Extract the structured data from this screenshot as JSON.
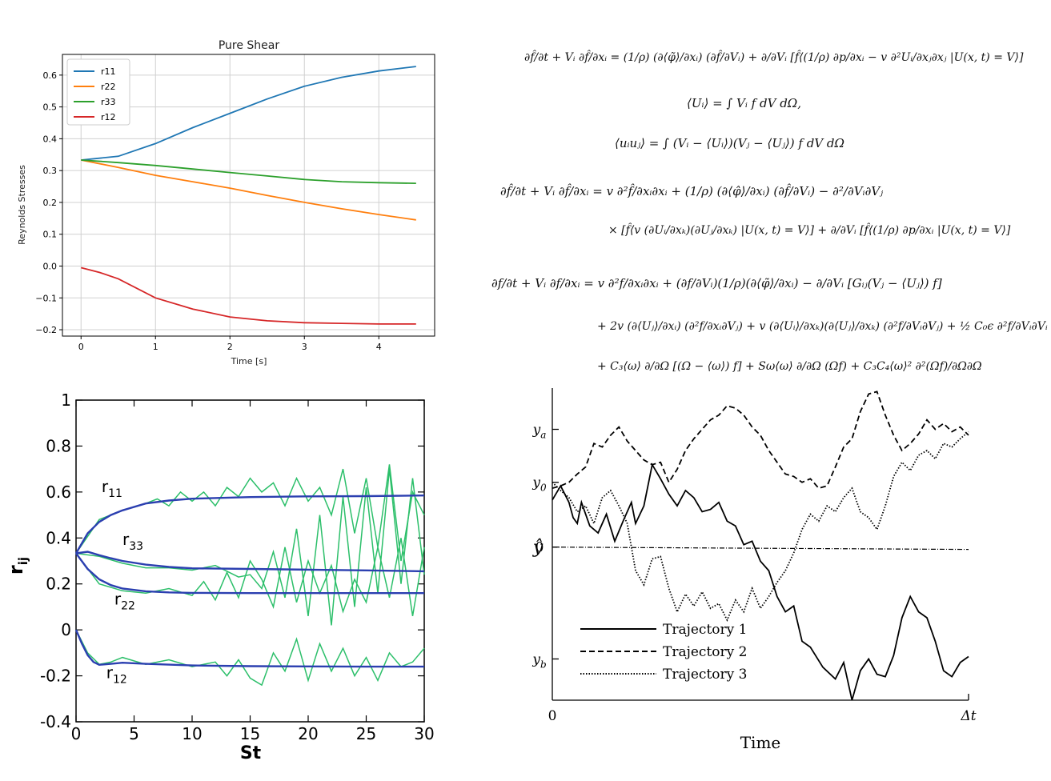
{
  "charts": [
    {
      "id": "pure-shear",
      "type": "line",
      "title": "Pure Shear",
      "xlabel": "Time [s]",
      "ylabel": "Reynolds Stresses",
      "xlim": [
        -0.25,
        4.75
      ],
      "ylim": [
        -0.22,
        0.665
      ],
      "xticks": [
        0,
        1,
        2,
        3,
        4
      ],
      "yticks": [
        -0.2,
        -0.1,
        0.0,
        0.1,
        0.2,
        0.3,
        0.4,
        0.5,
        0.6
      ],
      "ytick_labels": [
        "−0.2",
        "−0.1",
        "0.0",
        "0.1",
        "0.2",
        "0.3",
        "0.4",
        "0.5",
        "0.6"
      ],
      "grid": true,
      "legend": "top-left",
      "series": [
        {
          "name": "r11",
          "color": "#1f77b4",
          "x": [
            0,
            0.5,
            1,
            1.5,
            2,
            2.5,
            3,
            3.5,
            4,
            4.5
          ],
          "y": [
            0.333,
            0.345,
            0.385,
            0.435,
            0.48,
            0.525,
            0.565,
            0.593,
            0.613,
            0.627
          ]
        },
        {
          "name": "r22",
          "color": "#ff7f0e",
          "x": [
            0,
            0.5,
            1,
            1.5,
            2,
            2.5,
            3,
            3.5,
            4,
            4.5
          ],
          "y": [
            0.333,
            0.31,
            0.285,
            0.265,
            0.245,
            0.222,
            0.2,
            0.18,
            0.162,
            0.145
          ]
        },
        {
          "name": "r33",
          "color": "#2ca02c",
          "x": [
            0,
            0.5,
            1,
            1.5,
            2,
            2.5,
            3,
            3.5,
            4,
            4.5
          ],
          "y": [
            0.333,
            0.325,
            0.316,
            0.305,
            0.294,
            0.283,
            0.272,
            0.265,
            0.262,
            0.26
          ]
        },
        {
          "name": "r12",
          "color": "#d62728",
          "x": [
            0,
            0.25,
            0.5,
            1,
            1.5,
            2,
            2.5,
            3,
            3.5,
            4,
            4.5
          ],
          "y": [
            -0.005,
            -0.02,
            -0.04,
            -0.1,
            -0.135,
            -0.16,
            -0.172,
            -0.178,
            -0.18,
            -0.182,
            -0.182
          ]
        }
      ]
    },
    {
      "id": "rij-vs-st",
      "type": "line",
      "xlabel": "St",
      "ylabel": "r",
      "ylabel_sub": "ij",
      "xlim": [
        0,
        30
      ],
      "ylim": [
        -0.4,
        1.0
      ],
      "xticks": [
        0,
        5,
        10,
        15,
        20,
        25,
        30
      ],
      "yticks": [
        -0.4,
        -0.2,
        0,
        0.2,
        0.4,
        0.6,
        0.8,
        1
      ],
      "ytick_labels": [
        "-0.4",
        "-0.2",
        "0",
        "0.2",
        "0.4",
        "0.6",
        "0.8",
        "1"
      ],
      "grid": false,
      "annotations": [
        {
          "main": "r",
          "sub": "11",
          "x": 3.1,
          "y": 0.6
        },
        {
          "main": "r",
          "sub": "33",
          "x": 4.9,
          "y": 0.37
        },
        {
          "main": "r",
          "sub": "22",
          "x": 4.2,
          "y": 0.11
        },
        {
          "main": "r",
          "sub": "12",
          "x": 3.5,
          "y": -0.21
        }
      ],
      "smooth_color": "#2b3fb0",
      "noisy_color": "#2cbf6a",
      "smooth_series": [
        {
          "x": [
            0,
            1,
            2,
            3,
            4,
            6,
            8,
            10,
            15,
            20,
            25,
            30
          ],
          "y": [
            0.333,
            0.42,
            0.47,
            0.5,
            0.52,
            0.55,
            0.563,
            0.571,
            0.578,
            0.581,
            0.582,
            0.585
          ]
        },
        {
          "x": [
            0,
            1,
            2,
            3,
            4,
            6,
            8,
            10,
            15,
            20,
            25,
            30
          ],
          "y": [
            0.333,
            0.34,
            0.325,
            0.312,
            0.3,
            0.284,
            0.274,
            0.268,
            0.265,
            0.262,
            0.259,
            0.255
          ]
        },
        {
          "x": [
            0,
            1,
            2,
            3,
            4,
            6,
            8,
            10,
            15,
            20,
            25,
            30
          ],
          "y": [
            0.333,
            0.265,
            0.22,
            0.195,
            0.18,
            0.168,
            0.163,
            0.161,
            0.16,
            0.16,
            0.16,
            0.16
          ]
        },
        {
          "x": [
            0,
            0.5,
            1,
            1.5,
            2,
            3,
            4,
            6,
            10,
            15,
            20,
            25,
            30
          ],
          "y": [
            0,
            -0.06,
            -0.11,
            -0.14,
            -0.152,
            -0.148,
            -0.143,
            -0.148,
            -0.155,
            -0.158,
            -0.159,
            -0.16,
            -0.16
          ]
        }
      ],
      "noisy_series": [
        {
          "x": [
            0,
            2,
            4,
            6,
            7,
            8,
            9,
            10,
            11,
            12,
            13,
            14,
            15,
            16,
            17,
            18,
            19,
            20,
            21,
            22,
            23,
            24,
            25,
            26,
            27,
            28,
            29,
            30
          ],
          "y": [
            0.333,
            0.48,
            0.52,
            0.55,
            0.57,
            0.54,
            0.6,
            0.56,
            0.6,
            0.54,
            0.62,
            0.58,
            0.66,
            0.6,
            0.64,
            0.54,
            0.66,
            0.56,
            0.62,
            0.5,
            0.7,
            0.42,
            0.66,
            0.36,
            0.72,
            0.3,
            0.6,
            0.5
          ]
        },
        {
          "x": [
            0,
            2,
            4,
            6,
            8,
            10,
            12,
            14,
            15,
            16,
            17,
            18,
            19,
            20,
            21,
            22,
            23,
            24,
            25,
            26,
            27,
            28,
            29,
            30
          ],
          "y": [
            0.333,
            0.32,
            0.29,
            0.27,
            0.27,
            0.26,
            0.28,
            0.23,
            0.24,
            0.18,
            0.34,
            0.14,
            0.44,
            0.06,
            0.5,
            0.02,
            0.58,
            0.1,
            0.62,
            0.16,
            0.7,
            0.2,
            0.66,
            0.24
          ]
        },
        {
          "x": [
            0,
            2,
            4,
            6,
            8,
            10,
            11,
            12,
            13,
            14,
            15,
            16,
            17,
            18,
            19,
            20,
            21,
            22,
            23,
            24,
            25,
            26,
            27,
            28,
            29,
            30
          ],
          "y": [
            0.333,
            0.2,
            0.17,
            0.16,
            0.18,
            0.15,
            0.21,
            0.13,
            0.25,
            0.14,
            0.3,
            0.22,
            0.1,
            0.36,
            0.12,
            0.3,
            0.16,
            0.28,
            0.08,
            0.22,
            0.12,
            0.36,
            0.14,
            0.4,
            0.06,
            0.36
          ]
        },
        {
          "x": [
            0,
            1,
            2,
            3,
            4,
            6,
            8,
            10,
            12,
            13,
            14,
            15,
            16,
            17,
            18,
            19,
            20,
            21,
            22,
            23,
            24,
            25,
            26,
            27,
            28,
            29,
            30
          ],
          "y": [
            0,
            -0.1,
            -0.15,
            -0.14,
            -0.12,
            -0.15,
            -0.13,
            -0.16,
            -0.14,
            -0.2,
            -0.13,
            -0.21,
            -0.24,
            -0.1,
            -0.18,
            -0.04,
            -0.22,
            -0.06,
            -0.18,
            -0.08,
            -0.2,
            -0.12,
            -0.22,
            -0.1,
            -0.16,
            -0.14,
            -0.08
          ]
        }
      ]
    },
    {
      "id": "trajectories",
      "type": "line",
      "xlabel": "Time",
      "ylabel": "ŷ",
      "xtick_labels": [
        "0",
        "Δt"
      ],
      "ytick_labels": [
        "y",
        "y",
        "0",
        "y"
      ],
      "ytick_subs": [
        "a",
        "0",
        "",
        "b"
      ],
      "xlim": [
        0,
        1
      ],
      "ylim": [
        -1.3,
        1.35
      ],
      "ytick_values": [
        1.0,
        0.55,
        0.0,
        -0.95
      ],
      "legend": "bottom-left",
      "series": [
        {
          "name": "Trajectory 1",
          "style": "solid",
          "x": [
            0,
            0.02,
            0.04,
            0.05,
            0.06,
            0.07,
            0.09,
            0.11,
            0.13,
            0.15,
            0.17,
            0.19,
            0.2,
            0.22,
            0.24,
            0.26,
            0.28,
            0.3,
            0.32,
            0.34,
            0.36,
            0.38,
            0.4,
            0.42,
            0.44,
            0.46,
            0.48,
            0.5,
            0.52,
            0.54,
            0.56,
            0.58,
            0.6,
            0.62,
            0.65,
            0.68,
            0.7,
            0.72,
            0.74,
            0.76,
            0.78,
            0.8,
            0.82,
            0.84,
            0.86,
            0.88,
            0.9,
            0.92,
            0.94,
            0.96,
            0.98,
            1.0
          ],
          "y": [
            0.4,
            0.52,
            0.38,
            0.25,
            0.2,
            0.38,
            0.18,
            0.12,
            0.28,
            0.05,
            0.22,
            0.38,
            0.2,
            0.35,
            0.7,
            0.58,
            0.45,
            0.35,
            0.48,
            0.42,
            0.3,
            0.32,
            0.38,
            0.22,
            0.18,
            0.02,
            0.05,
            -0.12,
            -0.2,
            -0.42,
            -0.55,
            -0.5,
            -0.8,
            -0.85,
            -1.02,
            -1.12,
            -0.98,
            -1.3,
            -1.05,
            -0.95,
            -1.08,
            -1.1,
            -0.92,
            -0.6,
            -0.42,
            -0.55,
            -0.6,
            -0.8,
            -1.05,
            -1.1,
            -0.98,
            -0.93
          ]
        },
        {
          "name": "Trajectory 2",
          "style": "dashed",
          "x": [
            0,
            0.02,
            0.04,
            0.06,
            0.08,
            0.1,
            0.12,
            0.14,
            0.16,
            0.18,
            0.2,
            0.22,
            0.24,
            0.26,
            0.28,
            0.3,
            0.32,
            0.34,
            0.36,
            0.38,
            0.4,
            0.42,
            0.44,
            0.46,
            0.48,
            0.5,
            0.52,
            0.54,
            0.56,
            0.58,
            0.6,
            0.62,
            0.64,
            0.66,
            0.68,
            0.7,
            0.72,
            0.74,
            0.76,
            0.78,
            0.8,
            0.82,
            0.84,
            0.86,
            0.88,
            0.9,
            0.92,
            0.94,
            0.96,
            0.98,
            1.0
          ],
          "y": [
            0.5,
            0.52,
            0.55,
            0.62,
            0.68,
            0.88,
            0.85,
            0.95,
            1.02,
            0.9,
            0.82,
            0.74,
            0.7,
            0.72,
            0.55,
            0.66,
            0.82,
            0.92,
            1.0,
            1.08,
            1.12,
            1.2,
            1.18,
            1.12,
            1.02,
            0.95,
            0.82,
            0.72,
            0.62,
            0.6,
            0.55,
            0.58,
            0.5,
            0.52,
            0.68,
            0.85,
            0.92,
            1.15,
            1.3,
            1.32,
            1.12,
            0.95,
            0.82,
            0.88,
            0.96,
            1.08,
            1.0,
            1.05,
            0.98,
            1.02,
            0.95
          ]
        },
        {
          "name": "Trajectory 3",
          "style": "dotted",
          "x": [
            0,
            0.02,
            0.04,
            0.06,
            0.08,
            0.1,
            0.12,
            0.14,
            0.16,
            0.18,
            0.2,
            0.22,
            0.24,
            0.26,
            0.28,
            0.3,
            0.32,
            0.34,
            0.36,
            0.38,
            0.4,
            0.42,
            0.44,
            0.46,
            0.48,
            0.5,
            0.52,
            0.54,
            0.56,
            0.58,
            0.6,
            0.62,
            0.64,
            0.66,
            0.68,
            0.7,
            0.72,
            0.74,
            0.76,
            0.78,
            0.8,
            0.82,
            0.84,
            0.86,
            0.88,
            0.9,
            0.92,
            0.94,
            0.96,
            0.98,
            1.0
          ],
          "y": [
            0.55,
            0.48,
            0.42,
            0.3,
            0.35,
            0.2,
            0.42,
            0.48,
            0.35,
            0.2,
            -0.2,
            -0.32,
            -0.1,
            -0.08,
            -0.35,
            -0.55,
            -0.4,
            -0.5,
            -0.38,
            -0.52,
            -0.48,
            -0.62,
            -0.45,
            -0.55,
            -0.35,
            -0.52,
            -0.42,
            -0.3,
            -0.2,
            -0.05,
            0.15,
            0.28,
            0.22,
            0.35,
            0.3,
            0.42,
            0.5,
            0.3,
            0.25,
            0.15,
            0.35,
            0.6,
            0.72,
            0.65,
            0.78,
            0.82,
            0.75,
            0.88,
            0.85,
            0.92,
            0.98
          ]
        },
        {
          "name": "",
          "style": "dashdot",
          "x": [
            0,
            1.0
          ],
          "y": [
            0,
            -0.02
          ]
        }
      ]
    }
  ],
  "equations": [
    {
      "text": "∂f̂/∂t + Vᵢ ∂f̂/∂xᵢ = (1/ρ) (∂⟨φ̃⟩/∂xᵢ) (∂f̂/∂Vᵢ) + ∂/∂Vᵢ [f̂⟨(1/ρ) ∂p/∂xᵢ − v ∂²Uᵢ/∂xⱼ∂xⱼ |U(x, t) = V⟩]"
    },
    {
      "text": "⟨Uᵢ⟩ = ∫ Vᵢ f dV dΩ,"
    },
    {
      "text": "⟨uᵢuⱼ⟩ = ∫ (Vᵢ − ⟨Uᵢ⟩)(Vⱼ − ⟨Uⱼ⟩) f dV dΩ"
    },
    {
      "text": "∂f̂/∂t + Vᵢ ∂f̂/∂xᵢ = v ∂²f̂/∂xᵢ∂xᵢ + (1/ρ) (∂⟨φ̂⟩/∂xᵢ) (∂f̂/∂Vᵢ) − ∂²/∂Vᵢ∂Vⱼ"
    },
    {
      "text": "× [f̂⟨v (∂Uᵢ/∂xₖ)(∂Uⱼ/∂xₖ) |U(x, t) = V⟩] + ∂/∂Vᵢ [f̂⟨(1/ρ) ∂p/∂xᵢ |U(x, t) = V⟩]"
    },
    {
      "text": "∂f/∂t + Vᵢ ∂f/∂xᵢ = v ∂²f/∂xᵢ∂xᵢ + (∂f/∂Vᵢ)(1/ρ)(∂⟨φ̃⟩/∂xᵢ) − ∂/∂Vᵢ [Gᵢⱼ(Vⱼ − ⟨Uⱼ⟩) f]"
    },
    {
      "text": "+ 2v (∂⟨Uⱼ⟩/∂xᵢ) (∂²f/∂xᵢ∂Vⱼ) + v (∂⟨Uᵢ⟩/∂xₖ)(∂⟨Uⱼ⟩/∂xₖ) (∂²f/∂Vᵢ∂Vⱼ) + ½ C₀ϵ ∂²f/∂Vᵢ∂Vᵢ"
    },
    {
      "text": "+ C₃⟨ω⟩ ∂/∂Ω [(Ω − ⟨ω⟩) f] + Sω⟨ω⟩ ∂/∂Ω (Ωf) + C₃C₄⟨ω⟩² ∂²(Ωf)/∂Ω∂Ω"
    }
  ]
}
